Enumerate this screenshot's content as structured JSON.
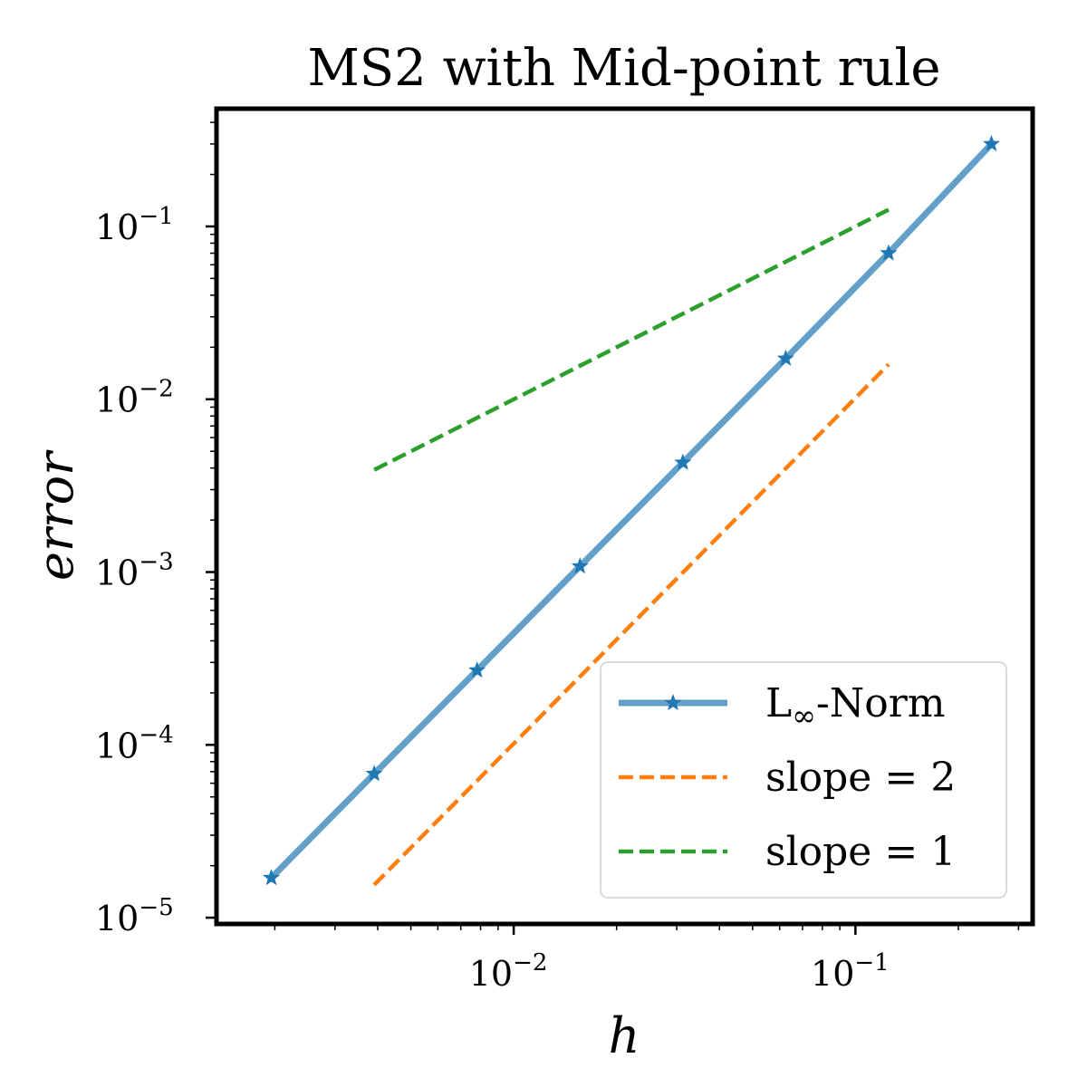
{
  "chart_data": {
    "type": "line",
    "title": "MS2 with Mid-point rule",
    "xlabel": "h",
    "ylabel": "error",
    "xscale": "log",
    "yscale": "log",
    "xlim": [
      0.00135,
      0.33
    ],
    "ylim": [
      9.2e-06,
      0.48
    ],
    "x_ticks": [
      {
        "value": 0.01,
        "base": "10",
        "exp": "−2"
      },
      {
        "value": 0.1,
        "base": "10",
        "exp": "−1"
      }
    ],
    "y_ticks": [
      {
        "value": 1e-05,
        "base": "10",
        "exp": "−5"
      },
      {
        "value": 0.0001,
        "base": "10",
        "exp": "−4"
      },
      {
        "value": 0.001,
        "base": "10",
        "exp": "−3"
      },
      {
        "value": 0.01,
        "base": "10",
        "exp": "−2"
      },
      {
        "value": 0.1,
        "base": "10",
        "exp": "−1"
      }
    ],
    "legend_position": "lower-right",
    "series": [
      {
        "name": "L∞-Norm",
        "label_main": "L",
        "label_sub": "∞",
        "label_rest": "-Norm",
        "color": "#1f77b4",
        "style": "solid",
        "marker": "star",
        "x": [
          0.001953,
          0.003906,
          0.0078125,
          0.015625,
          0.03125,
          0.0625,
          0.125,
          0.25
        ],
        "y": [
          1.7e-05,
          6.8e-05,
          0.00027,
          0.00108,
          0.0043,
          0.0172,
          0.07,
          0.3
        ]
      },
      {
        "name": "slope = 2",
        "color": "#ff7f0e",
        "style": "dashed",
        "marker": "none",
        "x": [
          0.003906,
          0.125
        ],
        "y": [
          1.55e-05,
          0.0159
        ]
      },
      {
        "name": "slope = 1",
        "color": "#2ca02c",
        "style": "dashed",
        "marker": "none",
        "x": [
          0.003906,
          0.125
        ],
        "y": [
          0.0039,
          0.125
        ]
      }
    ]
  }
}
